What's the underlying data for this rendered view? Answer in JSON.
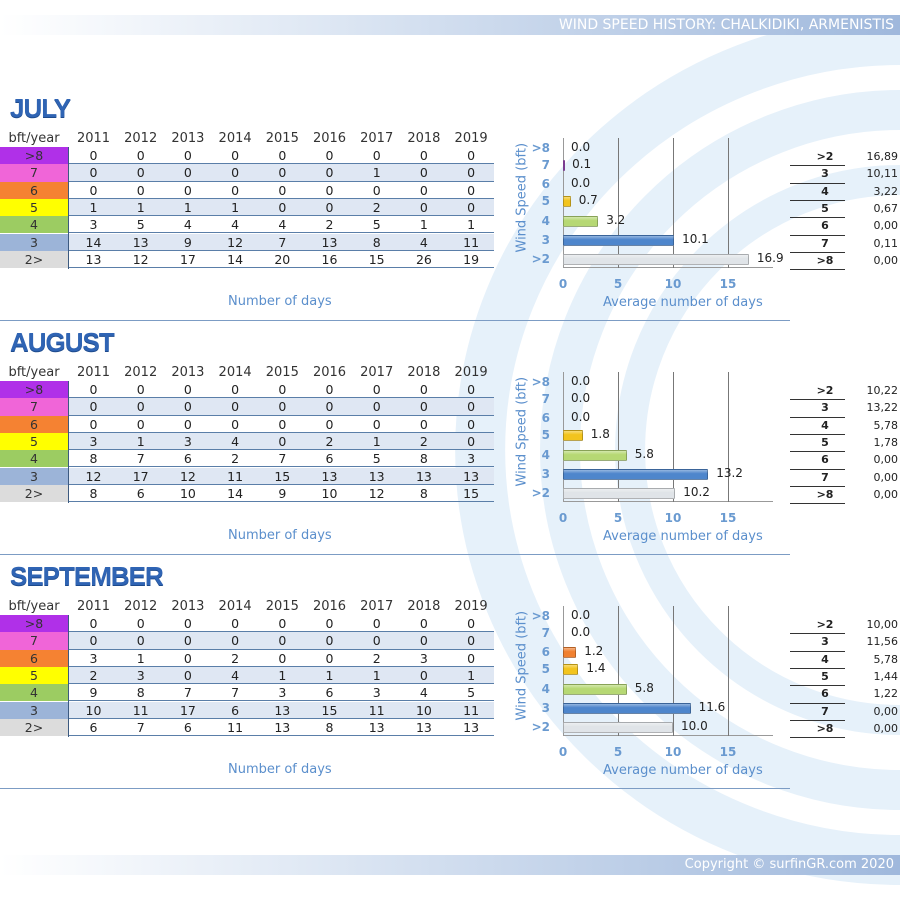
{
  "header": {
    "title": "WIND SPEED HISTORY: CHALKIDIKI, ARMENISTIS"
  },
  "footer": {
    "copyright": "Copyright © surfinGR.com 2020"
  },
  "table_header": "bft/year",
  "years": [
    "2011",
    "2012",
    "2013",
    "2014",
    "2015",
    "2016",
    "2017",
    "2018",
    "2019"
  ],
  "row_labels": [
    ">8",
    "7",
    "6",
    "5",
    "4",
    "3",
    "2>"
  ],
  "row_colors": [
    "#b030e8",
    "#f065d8",
    "#f58232",
    "#ffff00",
    "#9ccc62",
    "#9cb4d8",
    "#dcdcdc"
  ],
  "bar_colors": [
    "#9a3ec8",
    "#a44fc0",
    "#f08030",
    "#f2c41e",
    "#b6d874",
    "#4e86cc",
    "#e0e4e8"
  ],
  "labels": {
    "number_of_days": "Number of days",
    "average_days": "Average number of days",
    "wind_speed": "Wind Speed (bft)"
  },
  "chart_data": [
    {
      "type": "bar",
      "title": "JULY",
      "ylabel": "Wind Speed (bft)",
      "xlabel": "Average number of days",
      "xlim": [
        0,
        17
      ],
      "xticks": [
        "0",
        "5",
        "10",
        "15"
      ],
      "categories": [
        ">8",
        "7",
        "6",
        "5",
        "4",
        "3",
        ">2"
      ],
      "values": [
        0.0,
        0.1,
        0.0,
        0.7,
        3.2,
        10.1,
        16.9
      ],
      "value_labels": [
        "0.0",
        "0.1",
        "0.0",
        "0.7",
        "3.2",
        "10.1",
        "16.9"
      ],
      "summary": [
        [
          ">2",
          "16,89"
        ],
        [
          "3",
          "10,11"
        ],
        [
          "4",
          "3,22"
        ],
        [
          "5",
          "0,67"
        ],
        [
          "6",
          "0,00"
        ],
        [
          "7",
          "0,11"
        ],
        [
          ">8",
          "0,00"
        ]
      ],
      "table": [
        [
          0,
          0,
          0,
          0,
          0,
          0,
          0,
          0,
          0
        ],
        [
          0,
          0,
          0,
          0,
          0,
          0,
          1,
          0,
          0
        ],
        [
          0,
          0,
          0,
          0,
          0,
          0,
          0,
          0,
          0
        ],
        [
          1,
          1,
          1,
          1,
          0,
          0,
          2,
          0,
          0
        ],
        [
          3,
          5,
          4,
          4,
          4,
          2,
          5,
          1,
          1
        ],
        [
          14,
          13,
          9,
          12,
          7,
          13,
          8,
          4,
          11
        ],
        [
          13,
          12,
          17,
          14,
          20,
          16,
          15,
          26,
          19
        ]
      ]
    },
    {
      "type": "bar",
      "title": "AUGUST",
      "ylabel": "Wind Speed (bft)",
      "xlabel": "Average number of days",
      "xlim": [
        0,
        17
      ],
      "xticks": [
        "0",
        "5",
        "10",
        "15"
      ],
      "categories": [
        ">8",
        "7",
        "6",
        "5",
        "4",
        "3",
        ">2"
      ],
      "values": [
        0.0,
        0.0,
        0.0,
        1.8,
        5.8,
        13.2,
        10.2
      ],
      "value_labels": [
        "0.0",
        "0.0",
        "0.0",
        "1.8",
        "5.8",
        "13.2",
        "10.2"
      ],
      "summary": [
        [
          ">2",
          "10,22"
        ],
        [
          "3",
          "13,22"
        ],
        [
          "4",
          "5,78"
        ],
        [
          "5",
          "1,78"
        ],
        [
          "6",
          "0,00"
        ],
        [
          "7",
          "0,00"
        ],
        [
          ">8",
          "0,00"
        ]
      ],
      "table": [
        [
          0,
          0,
          0,
          0,
          0,
          0,
          0,
          0,
          0
        ],
        [
          0,
          0,
          0,
          0,
          0,
          0,
          0,
          0,
          0
        ],
        [
          0,
          0,
          0,
          0,
          0,
          0,
          0,
          0,
          0
        ],
        [
          3,
          1,
          3,
          4,
          0,
          2,
          1,
          2,
          0
        ],
        [
          8,
          7,
          6,
          2,
          7,
          6,
          5,
          8,
          3
        ],
        [
          12,
          17,
          12,
          11,
          15,
          13,
          13,
          13,
          13
        ],
        [
          8,
          6,
          10,
          14,
          9,
          10,
          12,
          8,
          15
        ]
      ]
    },
    {
      "type": "bar",
      "title": "SEPTEMBER",
      "ylabel": "Wind Speed (bft)",
      "xlabel": "Average number of days",
      "xlim": [
        0,
        17
      ],
      "xticks": [
        "0",
        "5",
        "10",
        "15"
      ],
      "categories": [
        ">8",
        "7",
        "6",
        "5",
        "4",
        "3",
        ">2"
      ],
      "values": [
        0.0,
        0.0,
        1.2,
        1.4,
        5.8,
        11.6,
        10.0
      ],
      "value_labels": [
        "0.0",
        "0.0",
        "1.2",
        "1.4",
        "5.8",
        "11.6",
        "10.0"
      ],
      "summary": [
        [
          ">2",
          "10,00"
        ],
        [
          "3",
          "11,56"
        ],
        [
          "4",
          "5,78"
        ],
        [
          "5",
          "1,44"
        ],
        [
          "6",
          "1,22"
        ],
        [
          "7",
          "0,00"
        ],
        [
          ">8",
          "0,00"
        ]
      ],
      "table": [
        [
          0,
          0,
          0,
          0,
          0,
          0,
          0,
          0,
          0
        ],
        [
          0,
          0,
          0,
          0,
          0,
          0,
          0,
          0,
          0
        ],
        [
          3,
          1,
          0,
          2,
          0,
          0,
          2,
          3,
          0
        ],
        [
          2,
          3,
          0,
          4,
          1,
          1,
          1,
          0,
          1
        ],
        [
          9,
          8,
          7,
          7,
          3,
          6,
          3,
          4,
          5
        ],
        [
          10,
          11,
          17,
          6,
          13,
          15,
          11,
          10,
          11
        ],
        [
          6,
          7,
          6,
          11,
          13,
          8,
          13,
          13,
          13
        ]
      ]
    }
  ]
}
